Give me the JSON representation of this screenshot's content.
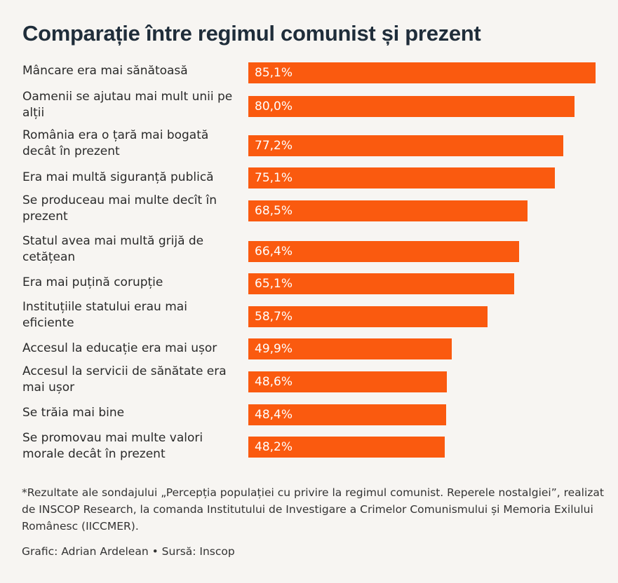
{
  "chart_data": {
    "type": "bar",
    "orientation": "horizontal",
    "title": "Comparație între regimul comunist și prezent",
    "categories": [
      "Mâncare era mai sănătoasă",
      "Oamenii se ajutau mai mult unii pe alții",
      "România era o țară mai bogată decât în prezent",
      "Era mai multă siguranță publică",
      "Se produceau mai multe decît în prezent",
      "Statul avea mai multă grijă de cetățean",
      "Era mai puțină corupție",
      "Instituțiile statului erau mai eficiente",
      "Accesul la educație era mai ușor",
      "Accesul la servicii de sănătate era mai ușor",
      "Se trăia mai bine",
      "Se promovau mai multe valori morale decât în prezent"
    ],
    "values": [
      85.1,
      80.0,
      77.2,
      75.1,
      68.5,
      66.4,
      65.1,
      58.7,
      49.9,
      48.6,
      48.4,
      48.2
    ],
    "value_labels": [
      "85,1%",
      "80,0%",
      "77,2%",
      "75,1%",
      "68,5%",
      "66,4%",
      "65,1%",
      "58,7%",
      "49,9%",
      "48,6%",
      "48,4%",
      "48,2%"
    ],
    "unit": "%",
    "bar_color": "#fa5a0f",
    "grid": false,
    "legend": "none"
  },
  "footnote": "*Rezultate ale sondajului „Percepția populației cu privire la regimul comunist. Reperele nostalgiei”, realizat de INSCOP Research, la comanda Institutului de Investigare a Crimelor Comunismului și Memoria Exilului Românesc (IICCMER).",
  "credits": "Grafic: Adrian Ardelean • Sursă: Inscop"
}
